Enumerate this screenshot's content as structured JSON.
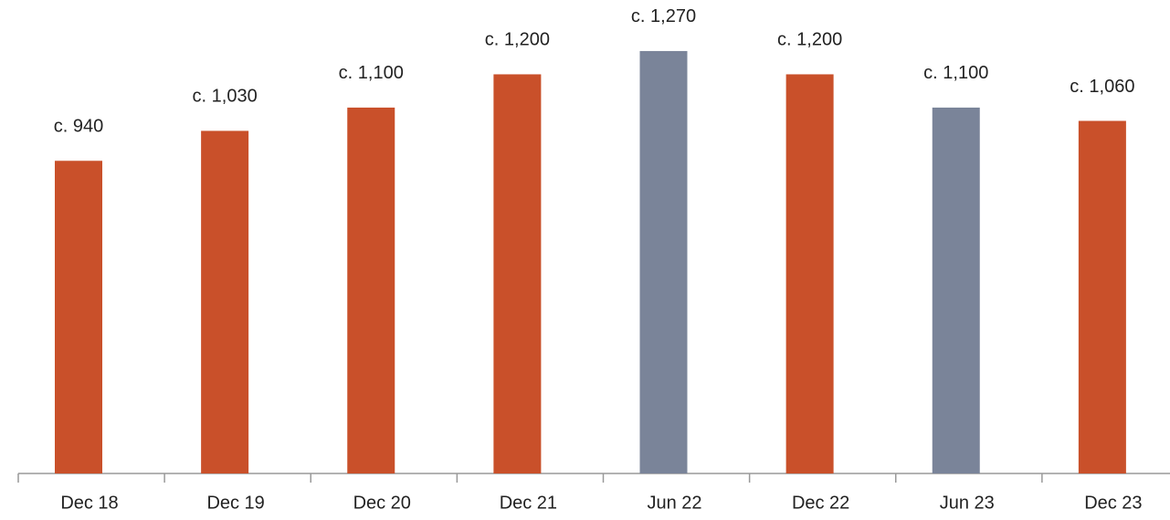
{
  "chart_data": {
    "type": "bar",
    "categories": [
      "Dec 18",
      "Dec 19",
      "Dec 20",
      "Dec 21",
      "Jun 22",
      "Dec 22",
      "Jun 23",
      "Dec 23"
    ],
    "values": [
      940,
      1030,
      1100,
      1200,
      1270,
      1200,
      1100,
      1060
    ],
    "value_labels": [
      "c. 940",
      "c. 1,030",
      "c. 1,100",
      "c. 1,200",
      "c. 1,270",
      "c. 1,200",
      "c. 1,100",
      "c. 1,060"
    ],
    "colors": [
      "#c9502a",
      "#c9502a",
      "#c9502a",
      "#c9502a",
      "#7a8499",
      "#c9502a",
      "#7a8499",
      "#c9502a"
    ],
    "ylim": [
      0,
      1300
    ]
  }
}
